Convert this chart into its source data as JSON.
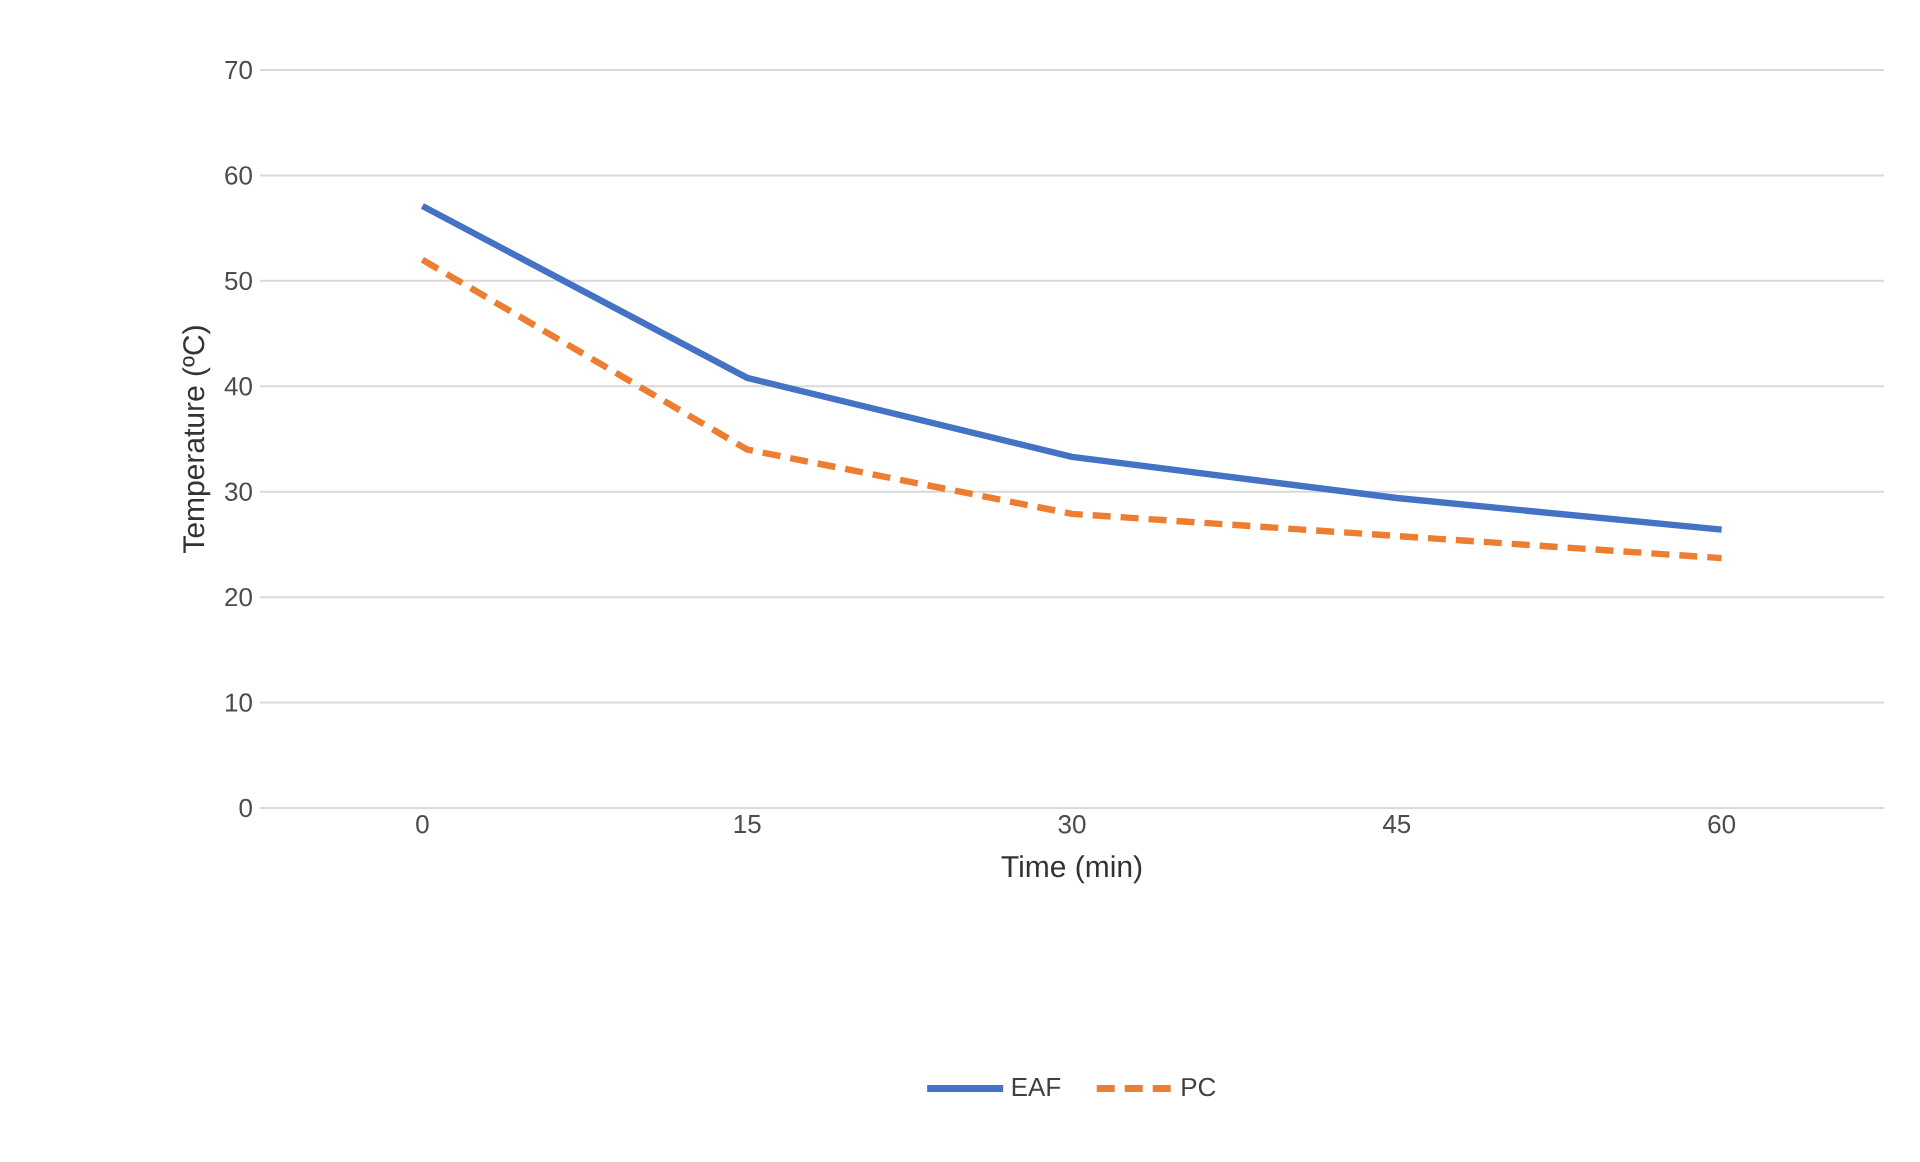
{
  "chart_data": {
    "type": "line",
    "xlabel": "Time (min)",
    "ylabel": "Temperature (ºC)",
    "categories": [
      "0",
      "15",
      "30",
      "45",
      "60"
    ],
    "series": [
      {
        "name": "EAF",
        "color": "#4472c4",
        "line_style": "solid",
        "values": [
          57.1,
          40.8,
          33.3,
          29.4,
          26.4
        ]
      },
      {
        "name": "PC",
        "color": "#ed7d31",
        "line_style": "dashed",
        "values": [
          52.0,
          34.0,
          27.9,
          25.8,
          23.7
        ]
      }
    ],
    "ylim": [
      0,
      70
    ],
    "yticks": [
      0,
      10,
      20,
      30,
      40,
      50,
      60,
      70
    ],
    "grid": "y",
    "legend": "bottom",
    "marker": "none"
  }
}
